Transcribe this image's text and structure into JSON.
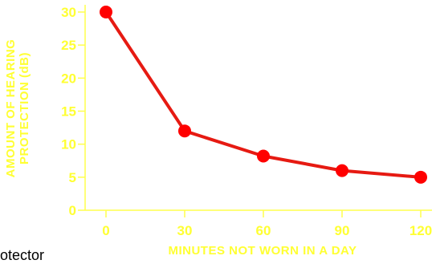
{
  "chart_data": {
    "type": "line",
    "title": "",
    "xlabel": "MINUTES NOT WORN IN A DAY",
    "ylabel": [
      "AMOUNT OF HEARING",
      "PROTECTION (dB)"
    ],
    "x": [
      0,
      30,
      60,
      90,
      120
    ],
    "series": [
      {
        "values": [
          30,
          12,
          8.2,
          6,
          5
        ]
      }
    ],
    "x_ticks": [
      "0",
      "30",
      "60",
      "90",
      "120"
    ],
    "y_ticks": [
      "0",
      "5",
      "10",
      "15",
      "20",
      "25",
      "30"
    ],
    "xlim": [
      0,
      120
    ],
    "ylim": [
      0,
      30
    ],
    "grid": false,
    "colors": {
      "line": "#e61a12",
      "marker": "#ff0000",
      "axis": "#ffff4d",
      "text": "#ffff33"
    }
  },
  "footer": {
    "text": "otector"
  }
}
